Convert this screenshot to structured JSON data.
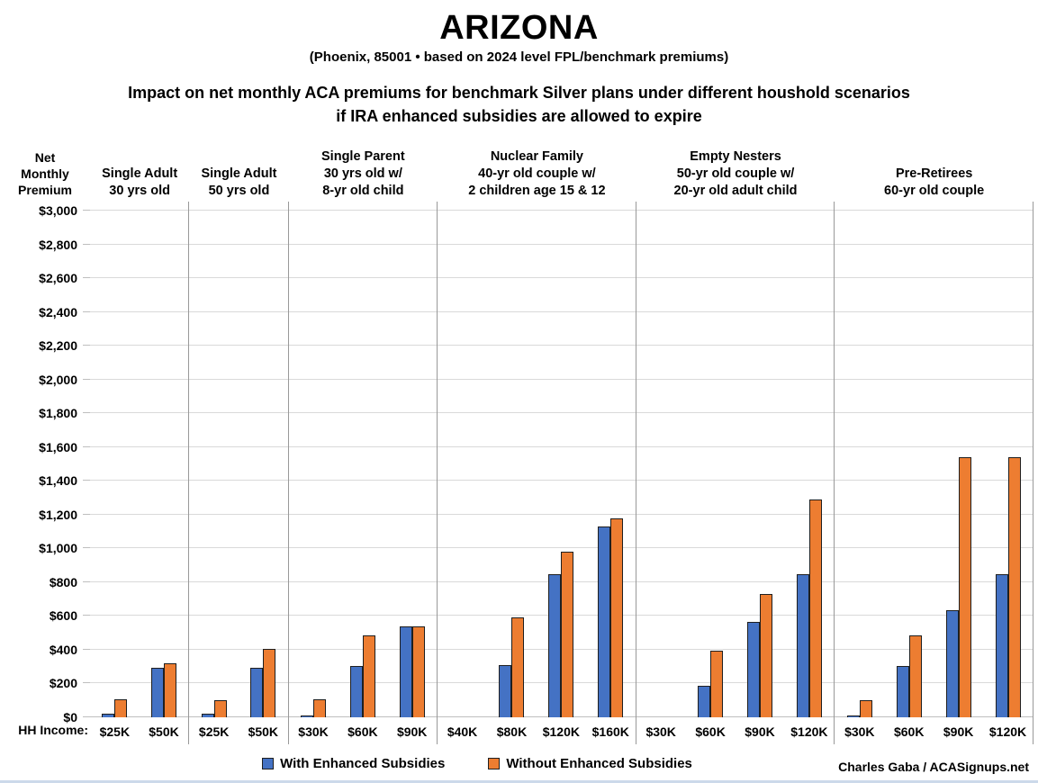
{
  "title": "ARIZONA",
  "subtitle": "(Phoenix, 85001 • based on 2024 level FPL/benchmark premiums)",
  "heading": {
    "line1": "Impact on net monthly ACA premiums for benchmark Silver plans under different houshold scenarios",
    "line2": "if IRA enhanced subsidies are allowed to expire"
  },
  "y_axis_title": {
    "line1": "Net",
    "line2": "Monthly",
    "line3": "Premium"
  },
  "hh_income_label": "HH Income:",
  "legend": {
    "with_label": "With Enhanced Subsidies",
    "without_label": "Without Enhanced Subsidies"
  },
  "credit": "Charles Gaba / ACASignups.net",
  "colors": {
    "with_enhanced": "#4472C4",
    "without_enhanced": "#ED7D31",
    "bar_border": "#1f1f1f",
    "gridline": "#d9d9d9",
    "divider": "#999999"
  },
  "chart_data": {
    "type": "bar",
    "title": "ARIZONA — Impact on net monthly ACA premiums for benchmark Silver plans under different houshold scenarios if IRA enhanced subsidies are allowed to expire",
    "xlabel": "HH Income",
    "ylabel": "Net Monthly Premium",
    "ylim": [
      0,
      3000
    ],
    "ytick_step": 200,
    "grid": true,
    "legend_position": "bottom",
    "series_names": [
      "With Enhanced Subsidies",
      "Without Enhanced Subsidies"
    ],
    "groups": [
      {
        "label_lines": [
          "Single Adult",
          "30 yrs old"
        ],
        "incomes": [
          "$25K",
          "$50K"
        ],
        "with_enhanced": [
          20,
          295
        ],
        "without_enhanced": [
          105,
          320
        ]
      },
      {
        "label_lines": [
          "Single Adult",
          "50 yrs old"
        ],
        "incomes": [
          "$25K",
          "$50K"
        ],
        "with_enhanced": [
          20,
          295
        ],
        "without_enhanced": [
          100,
          405
        ]
      },
      {
        "label_lines": [
          "Single Parent",
          "30 yrs old w/",
          "8-yr old child"
        ],
        "incomes": [
          "$30K",
          "$60K",
          "$90K"
        ],
        "with_enhanced": [
          10,
          305,
          540
        ],
        "without_enhanced": [
          105,
          485,
          540
        ]
      },
      {
        "label_lines": [
          "Nuclear Family",
          "40-yr old couple w/",
          "2 children age 15 & 12"
        ],
        "incomes": [
          "$40K",
          "$80K",
          "$120K",
          "$160K"
        ],
        "with_enhanced": [
          0,
          310,
          850,
          1130
        ],
        "without_enhanced": [
          0,
          590,
          980,
          1180
        ]
      },
      {
        "label_lines": [
          "Empty Nesters",
          "50-yr old couple w/",
          "20-yr old adult child"
        ],
        "incomes": [
          "$30K",
          "$60K",
          "$90K",
          "$120K"
        ],
        "with_enhanced": [
          0,
          185,
          565,
          850
        ],
        "without_enhanced": [
          0,
          395,
          730,
          1290
        ]
      },
      {
        "label_lines": [
          "Pre-Retirees",
          "60-yr old couple"
        ],
        "incomes": [
          "$30K",
          "$60K",
          "$90K",
          "$120K"
        ],
        "with_enhanced": [
          10,
          305,
          635,
          850
        ],
        "without_enhanced": [
          100,
          485,
          1540,
          1540
        ]
      }
    ]
  }
}
